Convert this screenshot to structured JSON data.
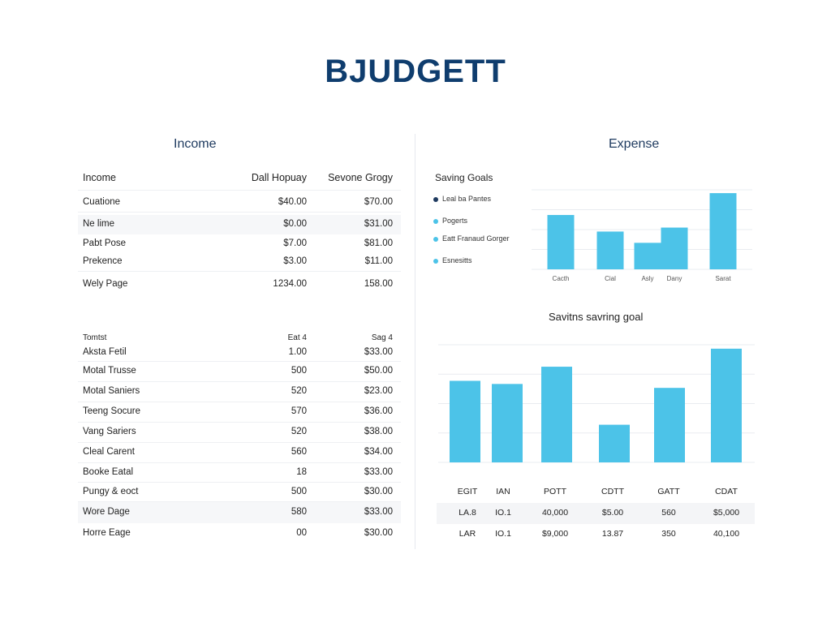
{
  "app": {
    "title": "BJUDGETT"
  },
  "income_panel": {
    "title": "Income",
    "table1": {
      "headers": [
        "Income",
        "Dall Hopuay",
        "Sevone Grogy"
      ],
      "rows": [
        [
          "Cuatione",
          "$40.00",
          "$70.00"
        ],
        [
          "Ne lime",
          "$0.00",
          "$31.00"
        ],
        [
          "Pabt Pose",
          "$7.00",
          "$81.00"
        ],
        [
          "Prekence",
          "$3.00",
          "$11.00"
        ],
        [
          "Wely Page",
          "1234.00",
          "158.00"
        ]
      ]
    },
    "table2": {
      "headers": [
        "Tomtst",
        "Eat 4",
        "Sag 4"
      ],
      "rows": [
        [
          "Aksta Fetil",
          "1.00",
          "$33.00"
        ],
        [
          "Motal Trusse",
          "500",
          "$50.00"
        ],
        [
          "Motal Saniers",
          "520",
          "$23.00"
        ],
        [
          "Teeng Socure",
          "570",
          "$36.00"
        ],
        [
          "Vang Sariers",
          "520",
          "$38.00"
        ],
        [
          "Cleal Carent",
          "560",
          "$34.00"
        ],
        [
          "Booke Eatal",
          "18",
          "$33.00"
        ],
        [
          "Pungy & eoct",
          "500",
          "$30.00"
        ],
        [
          "Wore Dage",
          "580",
          "$33.00"
        ],
        [
          "Horre Eage",
          "00",
          "$30.00"
        ]
      ]
    }
  },
  "expense_panel": {
    "title": "Expense",
    "legend_title": "Saving Goals",
    "legend": [
      {
        "label": "Leal ba Pantes",
        "color": "#1e3a5f"
      },
      {
        "label": "Pogerts",
        "color": "#4cc3e8"
      },
      {
        "label": "Eatt Franaud Gorger",
        "color": "#4cc3e8"
      },
      {
        "label": "Esnesitts",
        "color": "#4cc3e8"
      }
    ],
    "chart2_title": "Savitns savring goal",
    "bottom_table": {
      "headers": [
        "EGIT",
        "IAN",
        "POTT",
        "CDTT",
        "GATT",
        "CDAT"
      ],
      "rows": [
        [
          "LA.8",
          "IO.1",
          "40,000",
          "$5.00",
          "560",
          "$5,000"
        ],
        [
          "LAR",
          "IO.1",
          "$9,000",
          "13.87",
          "350",
          "40,100"
        ]
      ]
    }
  },
  "chart_data": [
    {
      "type": "bar",
      "categories": [
        "Cacth",
        "Cial",
        "Asly",
        "Dany",
        "Sarat"
      ],
      "values": [
        82,
        57,
        40,
        63,
        115
      ],
      "ylim": [
        0,
        120
      ],
      "grid": true,
      "colors": {
        "bar": "#4cc3e8",
        "grid": "#e9ecf0",
        "text": "#555555"
      }
    },
    {
      "type": "bar",
      "categories": [
        "",
        "",
        "",
        "",
        "",
        ""
      ],
      "values": [
        104,
        100,
        122,
        48,
        95,
        145
      ],
      "ylim": [
        0,
        150
      ],
      "grid": true,
      "colors": {
        "bar": "#4cc3e8",
        "grid": "#e9ecf0",
        "text": "#555555"
      }
    }
  ]
}
